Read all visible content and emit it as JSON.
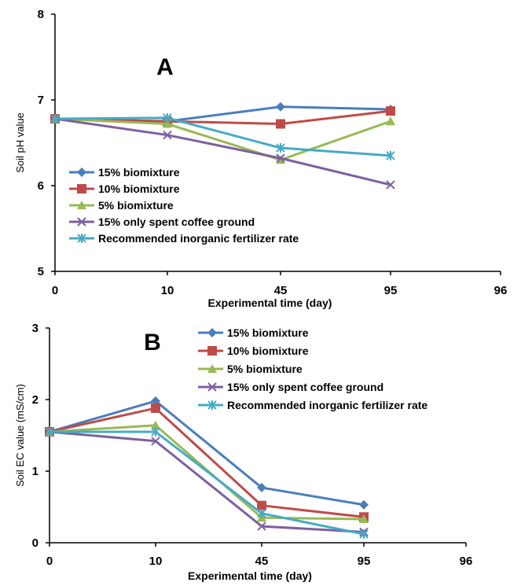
{
  "chart_data": [
    {
      "type": "line",
      "panel_label": "A",
      "x_categories": [
        "0",
        "10",
        "45",
        "95",
        "96"
      ],
      "x_data_count": 4,
      "xlabel": "Experimental time (day)",
      "ylabel": "Soil pH value",
      "ylim": [
        5,
        8
      ],
      "yticks": [
        "5",
        "6",
        "7",
        "8"
      ],
      "grid": false,
      "legend_position": "bottom-left",
      "series": [
        {
          "name": "15% biomixture",
          "values": [
            6.78,
            6.75,
            6.92,
            6.89
          ],
          "color": "#4a7ebb",
          "marker": "diamond"
        },
        {
          "name": "10% biomixture",
          "values": [
            6.78,
            6.75,
            6.72,
            6.87
          ],
          "color": "#be4b48",
          "marker": "square"
        },
        {
          "name": "5% biomixture",
          "values": [
            6.78,
            6.72,
            6.3,
            6.75
          ],
          "color": "#98b954",
          "marker": "triangle"
        },
        {
          "name": "15% only spent coffee ground",
          "values": [
            6.78,
            6.59,
            6.32,
            6.01
          ],
          "color": "#7d60a0",
          "marker": "x"
        },
        {
          "name": "Recommended inorganic fertilizer rate",
          "values": [
            6.78,
            6.79,
            6.44,
            6.35
          ],
          "color": "#46aac5",
          "marker": "star"
        }
      ]
    },
    {
      "type": "line",
      "panel_label": "B",
      "x_categories": [
        "0",
        "10",
        "45",
        "95",
        "96"
      ],
      "x_data_count": 4,
      "xlabel": "Experimental time (day)",
      "ylabel": "Soil EC value (mS/cm)",
      "ylim": [
        0,
        3
      ],
      "yticks": [
        "0",
        "1",
        "2",
        "3"
      ],
      "grid": false,
      "legend_position": "top-right",
      "series": [
        {
          "name": "15% biomixture",
          "values": [
            1.55,
            1.98,
            0.77,
            0.53
          ],
          "color": "#4a7ebb",
          "marker": "diamond"
        },
        {
          "name": "10% biomixture",
          "values": [
            1.55,
            1.88,
            0.52,
            0.36
          ],
          "color": "#be4b48",
          "marker": "square"
        },
        {
          "name": "5% biomixture",
          "values": [
            1.55,
            1.64,
            0.35,
            0.33
          ],
          "color": "#98b954",
          "marker": "triangle"
        },
        {
          "name": "15% only spent coffee ground",
          "values": [
            1.55,
            1.42,
            0.23,
            0.15
          ],
          "color": "#7d60a0",
          "marker": "x"
        },
        {
          "name": "Recommended inorganic fertilizer rate",
          "values": [
            1.55,
            1.55,
            0.41,
            0.12
          ],
          "color": "#46aac5",
          "marker": "star"
        }
      ]
    }
  ]
}
